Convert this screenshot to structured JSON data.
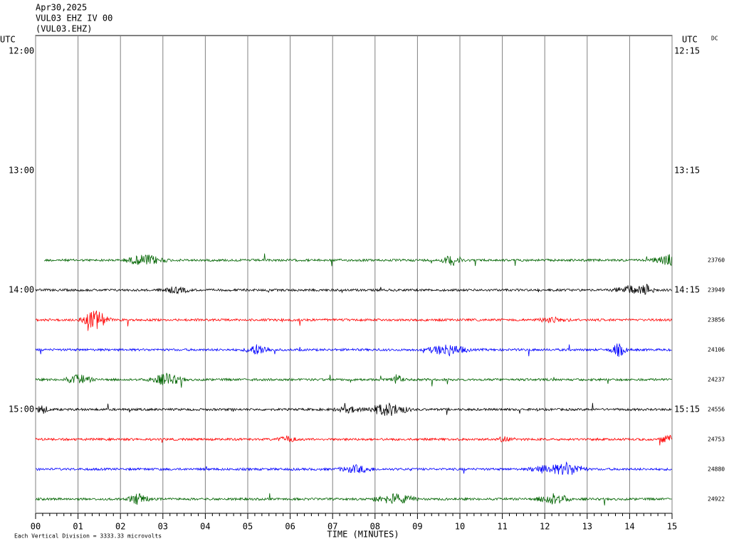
{
  "chart_data": {
    "type": "helicorder",
    "title_lines": [
      "Apr30,2025",
      "VUL03 EHZ IV 00",
      "(VUL03.EHZ)"
    ],
    "left_axis_label": "UTC",
    "right_axis_label": "UTC",
    "corner_label": "DC",
    "xlabel": "TIME (MINUTES)",
    "footer": "Each Vertical Division = 3333.33 microvolts",
    "xlim": [
      0,
      15
    ],
    "xticks": [
      {
        "value": 0,
        "label": "00"
      },
      {
        "value": 1,
        "label": "01"
      },
      {
        "value": 2,
        "label": "02"
      },
      {
        "value": 3,
        "label": "03"
      },
      {
        "value": 4,
        "label": "04"
      },
      {
        "value": 5,
        "label": "05"
      },
      {
        "value": 6,
        "label": "06"
      },
      {
        "value": 7,
        "label": "07"
      },
      {
        "value": 8,
        "label": "08"
      },
      {
        "value": 9,
        "label": "09"
      },
      {
        "value": 10,
        "label": "10"
      },
      {
        "value": 11,
        "label": "11"
      },
      {
        "value": 12,
        "label": "12"
      },
      {
        "value": 13,
        "label": "13"
      },
      {
        "value": 14,
        "label": "14"
      },
      {
        "value": 15,
        "label": "15"
      }
    ],
    "grid": true,
    "left_row_labels": [
      "12:00",
      null,
      null,
      null,
      "13:00",
      null,
      null,
      null,
      "14:00",
      null,
      null,
      null,
      "15:00",
      null,
      null,
      null
    ],
    "right_row_labels": [
      "12:15",
      null,
      null,
      null,
      "13:15",
      null,
      null,
      null,
      "14:15",
      null,
      null,
      null,
      "15:15",
      null,
      null,
      null
    ],
    "traces": [
      null,
      null,
      null,
      null,
      null,
      null,
      null,
      {
        "color": "#006400",
        "value": 23760
      },
      {
        "color": "#000000",
        "value": 23949
      },
      {
        "color": "#ff0000",
        "value": 23856
      },
      {
        "color": "#0000ff",
        "value": 24106
      },
      {
        "color": "#006400",
        "value": 24237
      },
      {
        "color": "#000000",
        "value": 24556
      },
      {
        "color": "#ff0000",
        "value": 24753
      },
      {
        "color": "#0000ff",
        "value": 24880
      },
      {
        "color": "#006400",
        "value": 24922
      }
    ]
  }
}
